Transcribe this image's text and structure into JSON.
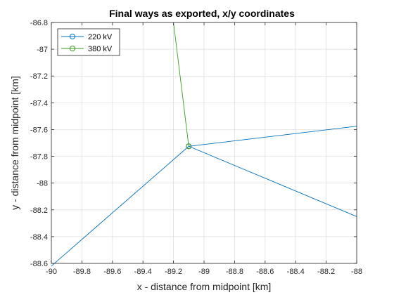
{
  "chart_data": {
    "type": "line",
    "title": "Final ways as exported, x/y coordinates",
    "xlabel": "x - distance from midpoint [km]",
    "ylabel": "y - distance from midpoint [km]",
    "xlim": [
      -90,
      -88
    ],
    "ylim": [
      -88.6,
      -86.8
    ],
    "xticks": [
      -90,
      -89.8,
      -89.6,
      -89.4,
      -89.2,
      -89,
      -88.8,
      -88.6,
      -88.4,
      -88.2,
      -88
    ],
    "xtick_labels": [
      "-90",
      "-89.8",
      "-89.6",
      "-89.4",
      "-89.2",
      "-89",
      "-88.8",
      "-88.6",
      "-88.4",
      "-88.2",
      "-88"
    ],
    "yticks": [
      -86.8,
      -87,
      -87.2,
      -87.4,
      -87.6,
      -87.8,
      -88,
      -88.2,
      -88.4,
      -88.6
    ],
    "ytick_labels": [
      "-86.8",
      "-87",
      "-87.2",
      "-87.4",
      "-87.6",
      "-87.8",
      "-88",
      "-88.2",
      "-88.4",
      "-88.6"
    ],
    "grid": true,
    "legend_position": "top-left",
    "series": [
      {
        "name": "220 kV",
        "color": "#0072BD",
        "marker": "circle",
        "segments": [
          [
            [
              -89.1,
              -87.725
            ],
            [
              -90.0,
              -88.62
            ]
          ],
          [
            [
              -89.1,
              -87.725
            ],
            [
              -88.0,
              -87.575
            ]
          ],
          [
            [
              -89.1,
              -87.725
            ],
            [
              -88.0,
              -88.25
            ]
          ]
        ],
        "markers": [
          [
            -89.1,
            -87.725
          ]
        ]
      },
      {
        "name": "380 kV",
        "color": "#3A9A1F",
        "marker": "circle",
        "segments": [
          [
            [
              -89.1,
              -87.725
            ],
            [
              -89.2,
              -86.8
            ]
          ]
        ],
        "markers": [
          [
            -89.1,
            -87.725
          ]
        ]
      }
    ]
  }
}
